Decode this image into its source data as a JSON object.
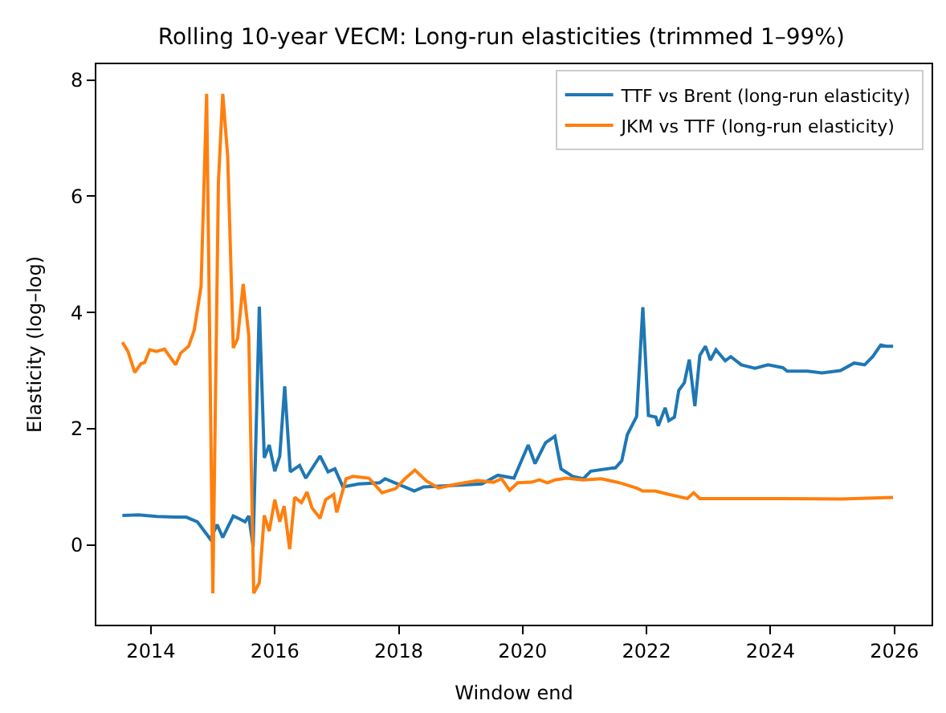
{
  "chart_data": {
    "type": "line",
    "title": "Rolling 10-year VECM: Long-run elasticities (trimmed 1–99%)",
    "xlabel": "Window end",
    "ylabel": "Elasticity (log–log)",
    "xlim": [
      2013.12,
      2026.6
    ],
    "xticks": [
      2014,
      2016,
      2018,
      2020,
      2022,
      2024,
      2026
    ],
    "ylim": [
      -1.37,
      8.27
    ],
    "yticks": [
      0,
      2,
      4,
      6,
      8
    ],
    "legend": "top right",
    "series": [
      {
        "name": "TTF vs Brent (long-run elasticity)",
        "color": "#1f77b4",
        "x": [
          2013.54,
          2013.8,
          2014.1,
          2014.4,
          2014.57,
          2014.75,
          2014.96,
          2015.07,
          2015.16,
          2015.33,
          2015.43,
          2015.52,
          2015.58,
          2015.65,
          2015.75,
          2015.83,
          2015.91,
          2016.0,
          2016.08,
          2016.16,
          2016.25,
          2016.4,
          2016.5,
          2016.73,
          2016.86,
          2016.97,
          2017.1,
          2017.35,
          2017.69,
          2017.78,
          2018.25,
          2018.4,
          2019.34,
          2019.6,
          2019.86,
          2020.09,
          2020.2,
          2020.37,
          2020.52,
          2020.62,
          2020.81,
          2020.98,
          2021.1,
          2021.5,
          2021.6,
          2021.69,
          2021.84,
          2021.94,
          2022.03,
          2022.15,
          2022.19,
          2022.3,
          2022.36,
          2022.45,
          2022.52,
          2022.61,
          2022.69,
          2022.78,
          2022.86,
          2022.95,
          2023.03,
          2023.12,
          2023.27,
          2023.36,
          2023.53,
          2023.75,
          2023.96,
          2024.2,
          2024.27,
          2024.6,
          2024.83,
          2025.13,
          2025.35,
          2025.52,
          2025.65,
          2025.78,
          2025.87,
          2025.98
        ],
        "values": [
          0.51,
          0.52,
          0.49,
          0.48,
          0.48,
          0.4,
          0.1,
          0.35,
          0.13,
          0.5,
          0.45,
          0.4,
          0.5,
          -0.03,
          4.1,
          1.5,
          1.72,
          1.27,
          1.53,
          2.73,
          1.26,
          1.37,
          1.15,
          1.53,
          1.26,
          1.31,
          1.0,
          1.05,
          1.07,
          1.14,
          0.93,
          1.0,
          1.05,
          1.2,
          1.15,
          1.72,
          1.4,
          1.76,
          1.87,
          1.31,
          1.18,
          1.14,
          1.27,
          1.33,
          1.45,
          1.9,
          2.21,
          4.09,
          2.23,
          2.2,
          2.05,
          2.36,
          2.14,
          2.2,
          2.66,
          2.79,
          3.19,
          2.39,
          3.26,
          3.42,
          3.18,
          3.36,
          3.17,
          3.24,
          3.1,
          3.04,
          3.1,
          3.05,
          2.99,
          2.99,
          2.96,
          3.0,
          3.13,
          3.1,
          3.24,
          3.44,
          3.42,
          3.42
        ]
      },
      {
        "name": "JKM vs TTF (long-run elasticity)",
        "color": "#ff7f0e",
        "x": [
          2013.54,
          2013.63,
          2013.74,
          2013.84,
          2013.9,
          2013.98,
          2014.09,
          2014.22,
          2014.4,
          2014.48,
          2014.61,
          2014.7,
          2014.81,
          2014.9,
          2015.0,
          2015.09,
          2015.16,
          2015.24,
          2015.33,
          2015.4,
          2015.49,
          2015.58,
          2015.66,
          2015.75,
          2015.83,
          2015.91,
          2016.0,
          2016.08,
          2016.15,
          2016.24,
          2016.32,
          2016.43,
          2016.52,
          2016.6,
          2016.73,
          2016.82,
          2016.95,
          2017.0,
          2017.15,
          2017.26,
          2017.43,
          2017.52,
          2017.73,
          2017.95,
          2018.1,
          2018.26,
          2018.45,
          2018.64,
          2018.9,
          2019.27,
          2019.53,
          2019.66,
          2019.79,
          2019.92,
          2020.14,
          2020.27,
          2020.4,
          2020.52,
          2020.71,
          2020.97,
          2021.27,
          2021.57,
          2021.84,
          2021.94,
          2022.14,
          2022.36,
          2022.66,
          2022.76,
          2022.86,
          2023.3,
          2024.17,
          2025.13,
          2025.98
        ],
        "values": [
          3.49,
          3.33,
          2.97,
          3.12,
          3.14,
          3.36,
          3.33,
          3.37,
          3.1,
          3.3,
          3.42,
          3.7,
          4.45,
          7.76,
          -0.83,
          6.24,
          7.76,
          6.68,
          3.39,
          3.55,
          4.49,
          3.6,
          -0.83,
          -0.65,
          0.51,
          0.24,
          0.78,
          0.4,
          0.67,
          -0.07,
          0.82,
          0.73,
          0.91,
          0.64,
          0.46,
          0.78,
          0.87,
          0.56,
          1.14,
          1.18,
          1.16,
          1.15,
          0.9,
          0.97,
          1.14,
          1.29,
          1.1,
          0.98,
          1.04,
          1.11,
          1.08,
          1.14,
          0.94,
          1.07,
          1.08,
          1.12,
          1.07,
          1.12,
          1.15,
          1.12,
          1.14,
          1.07,
          0.98,
          0.93,
          0.93,
          0.87,
          0.8,
          0.9,
          0.8,
          0.8,
          0.8,
          0.79,
          0.82
        ]
      }
    ]
  }
}
